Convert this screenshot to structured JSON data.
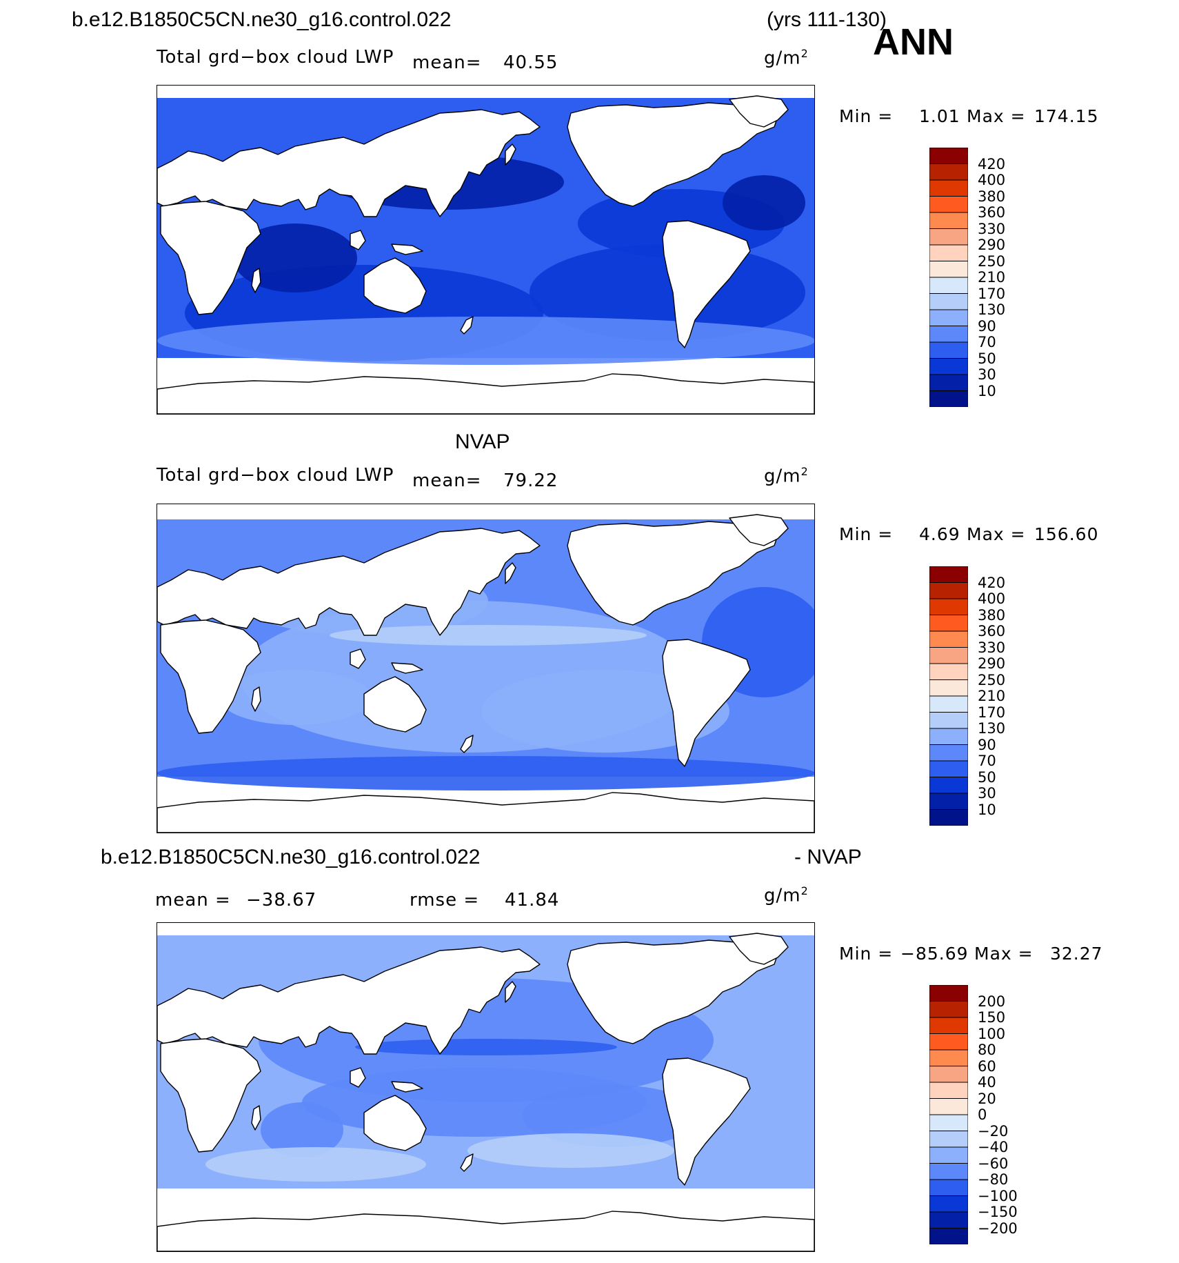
{
  "header": {
    "run_name": "b.e12.B1850C5CN.ne30_g16.control.022",
    "years": "(yrs 111-130)",
    "season": "ANN"
  },
  "panels": [
    {
      "id": "model",
      "variable": "Total grd−box cloud LWP",
      "mean_label": "mean=",
      "mean_value": "40.55",
      "units_base": "g/m",
      "units_exp": "2",
      "min_label": "Min =",
      "min_value": "1.01",
      "max_label": "Max =",
      "max_value": "174.15",
      "colorbar": {
        "levels": [
          "420",
          "400",
          "380",
          "360",
          "330",
          "290",
          "250",
          "210",
          "170",
          "130",
          "90",
          "70",
          "50",
          "30",
          "10"
        ],
        "colors": [
          "#8b0000",
          "#b72300",
          "#df3800",
          "#ff5a1f",
          "#ff8a50",
          "#f7a583",
          "#ffd3be",
          "#fbe8da",
          "#d7e8fb",
          "#b4cef9",
          "#8cb0fb",
          "#5d88fa",
          "#2d5ef0",
          "#0a38d6",
          "#0220a8",
          "#00138a"
        ]
      },
      "ocean_field": "low"
    },
    {
      "id": "obs",
      "title": "NVAP",
      "variable": "Total grd−box cloud LWP",
      "mean_label": "mean=",
      "mean_value": "79.22",
      "units_base": "g/m",
      "units_exp": "2",
      "min_label": "Min =",
      "min_value": "4.69",
      "max_label": "Max =",
      "max_value": "156.60",
      "colorbar": {
        "levels": [
          "420",
          "400",
          "380",
          "360",
          "330",
          "290",
          "250",
          "210",
          "170",
          "130",
          "90",
          "70",
          "50",
          "30",
          "10"
        ],
        "colors": [
          "#8b0000",
          "#b72300",
          "#df3800",
          "#ff5a1f",
          "#ff8a50",
          "#f7a583",
          "#ffd3be",
          "#fbe8da",
          "#d7e8fb",
          "#b4cef9",
          "#8cb0fb",
          "#5d88fa",
          "#2d5ef0",
          "#0a38d6",
          "#0220a8",
          "#00138a"
        ]
      },
      "ocean_field": "mid"
    },
    {
      "id": "diff",
      "title_left": "b.e12.B1850C5CN.ne30_g16.control.022",
      "title_right": "- NVAP",
      "mean_label": "mean =",
      "mean_value": "−38.67",
      "rmse_label": "rmse =",
      "rmse_value": "41.84",
      "units_base": "g/m",
      "units_exp": "2",
      "min_label": "Min =",
      "min_value": "−85.69",
      "max_label": "Max =",
      "max_value": "32.27",
      "colorbar": {
        "levels": [
          "200",
          "150",
          "100",
          "80",
          "60",
          "40",
          "20",
          "0",
          "−20",
          "−40",
          "−60",
          "−80",
          "−100",
          "−150",
          "−200"
        ],
        "colors": [
          "#8b0000",
          "#b72300",
          "#df3800",
          "#ff5a1f",
          "#ff8a50",
          "#f7a583",
          "#ffd3be",
          "#fbe8da",
          "#d7e8fb",
          "#b4cef9",
          "#8cb0fb",
          "#5d88fa",
          "#2d5ef0",
          "#0a38d6",
          "#0220a8",
          "#00138a"
        ]
      },
      "ocean_field": "diff"
    }
  ]
}
